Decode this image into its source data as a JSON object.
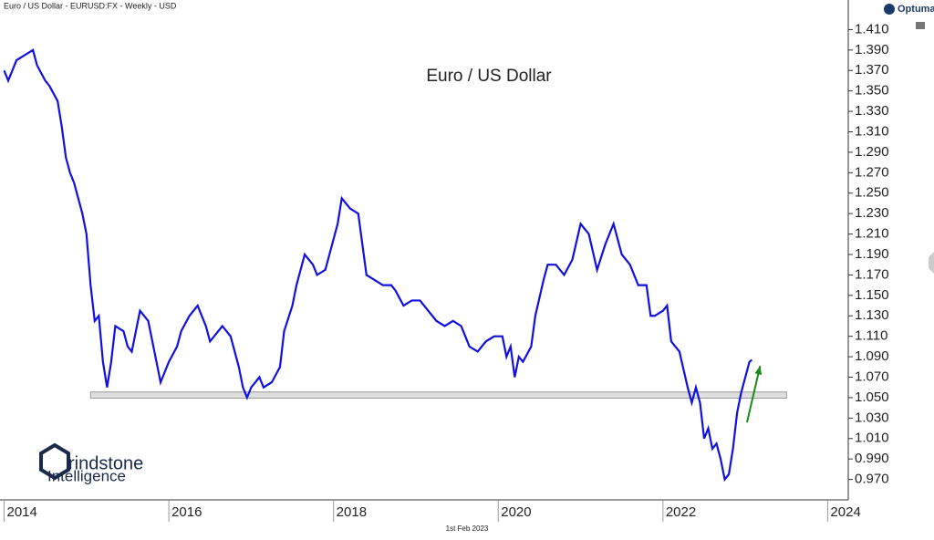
{
  "header": "Euro / US Dollar - EURUSD:FX - Weekly - USD",
  "brand": "Optuma",
  "footer": "1st Feb 2023",
  "logo": {
    "line1": "rindstone",
    "line2": "Intelligence"
  },
  "chart_data": {
    "type": "line",
    "title": "Euro / US Dollar",
    "x": [
      2014.0,
      2014.05,
      2014.1,
      2014.15,
      2014.25,
      2014.35,
      2014.4,
      2014.5,
      2014.55,
      2014.65,
      2014.7,
      2014.75,
      2014.8,
      2014.85,
      2014.9,
      2014.95,
      2015.0,
      2015.05,
      2015.1,
      2015.15,
      2015.2,
      2015.25,
      2015.3,
      2015.35,
      2015.45,
      2015.5,
      2015.55,
      2015.65,
      2015.75,
      2015.85,
      2015.9,
      2016.0,
      2016.1,
      2016.15,
      2016.25,
      2016.35,
      2016.45,
      2016.5,
      2016.55,
      2016.65,
      2016.75,
      2016.85,
      2016.9,
      2016.95,
      2017.0,
      2017.1,
      2017.15,
      2017.25,
      2017.35,
      2017.4,
      2017.5,
      2017.55,
      2017.65,
      2017.75,
      2017.8,
      2017.9,
      2017.95,
      2018.05,
      2018.1,
      2018.2,
      2018.3,
      2018.35,
      2018.4,
      2018.5,
      2018.6,
      2018.7,
      2018.75,
      2018.85,
      2018.95,
      2019.05,
      2019.15,
      2019.25,
      2019.35,
      2019.45,
      2019.55,
      2019.65,
      2019.75,
      2019.85,
      2019.95,
      2020.05,
      2020.1,
      2020.15,
      2020.2,
      2020.25,
      2020.3,
      2020.4,
      2020.45,
      2020.55,
      2020.6,
      2020.7,
      2020.8,
      2020.9,
      2021.0,
      2021.1,
      2021.2,
      2021.3,
      2021.4,
      2021.5,
      2021.6,
      2021.7,
      2021.8,
      2021.85,
      2021.9,
      2022.0,
      2022.05,
      2022.1,
      2022.2,
      2022.3,
      2022.35,
      2022.4,
      2022.45,
      2022.5,
      2022.55,
      2022.6,
      2022.65,
      2022.7,
      2022.75,
      2022.8,
      2022.85,
      2022.9,
      2022.95,
      2023.0,
      2023.05,
      2023.08
    ],
    "series": [
      {
        "name": "EURUSD",
        "color": "#1010e0",
        "values": [
          1.37,
          1.36,
          1.37,
          1.38,
          1.385,
          1.39,
          1.375,
          1.36,
          1.355,
          1.34,
          1.315,
          1.285,
          1.27,
          1.26,
          1.245,
          1.23,
          1.21,
          1.16,
          1.125,
          1.13,
          1.085,
          1.06,
          1.085,
          1.12,
          1.115,
          1.1,
          1.095,
          1.135,
          1.125,
          1.085,
          1.065,
          1.085,
          1.1,
          1.115,
          1.13,
          1.14,
          1.12,
          1.105,
          1.11,
          1.12,
          1.11,
          1.08,
          1.06,
          1.05,
          1.06,
          1.07,
          1.06,
          1.065,
          1.08,
          1.115,
          1.14,
          1.16,
          1.19,
          1.18,
          1.17,
          1.175,
          1.19,
          1.22,
          1.245,
          1.235,
          1.23,
          1.2,
          1.17,
          1.165,
          1.16,
          1.16,
          1.155,
          1.14,
          1.145,
          1.145,
          1.135,
          1.125,
          1.12,
          1.125,
          1.12,
          1.1,
          1.095,
          1.105,
          1.11,
          1.11,
          1.09,
          1.1,
          1.07,
          1.09,
          1.085,
          1.1,
          1.13,
          1.165,
          1.18,
          1.18,
          1.17,
          1.185,
          1.22,
          1.21,
          1.175,
          1.2,
          1.22,
          1.19,
          1.18,
          1.16,
          1.16,
          1.13,
          1.13,
          1.135,
          1.14,
          1.105,
          1.095,
          1.06,
          1.045,
          1.06,
          1.045,
          1.01,
          1.02,
          1.0,
          1.005,
          0.99,
          0.97,
          0.975,
          1.0,
          1.035,
          1.055,
          1.07,
          1.085,
          1.087
        ]
      }
    ],
    "support_band": {
      "x": [
        2015.05,
        2023.5
      ],
      "y": [
        1.0495,
        1.0555
      ],
      "color": "#d4d4d4"
    },
    "arrow": {
      "x": [
        2023.02,
        2023.18
      ],
      "y": [
        1.0257,
        1.081
      ],
      "color": "#1a8a1a"
    },
    "xlim": [
      2013.95,
      2024.25
    ],
    "xticks": [
      2014,
      2016,
      2018,
      2020,
      2022,
      2024
    ],
    "ylim": [
      0.95,
      1.43
    ],
    "yticks": [
      {
        "value": 0.97,
        "label": "0.970"
      },
      {
        "value": 0.99,
        "label": "0.990"
      },
      {
        "value": 1.01,
        "label": "1.010"
      },
      {
        "value": 1.03,
        "label": "1.030"
      },
      {
        "value": 1.05,
        "label": "1.050"
      },
      {
        "value": 1.07,
        "label": "1.070"
      },
      {
        "value": 1.09,
        "label": "1.090"
      },
      {
        "value": 1.11,
        "label": "1.110"
      },
      {
        "value": 1.13,
        "label": "1.130"
      },
      {
        "value": 1.15,
        "label": "1.150"
      },
      {
        "value": 1.17,
        "label": "1.170"
      },
      {
        "value": 1.19,
        "label": "1.190"
      },
      {
        "value": 1.21,
        "label": "1.210"
      },
      {
        "value": 1.23,
        "label": "1.230"
      },
      {
        "value": 1.25,
        "label": "1.250"
      },
      {
        "value": 1.27,
        "label": "1.270"
      },
      {
        "value": 1.29,
        "label": "1.290"
      },
      {
        "value": 1.31,
        "label": "1.310"
      },
      {
        "value": 1.33,
        "label": "1.330"
      },
      {
        "value": 1.35,
        "label": "1.350"
      },
      {
        "value": 1.37,
        "label": "1.370"
      },
      {
        "value": 1.39,
        "label": "1.390"
      },
      {
        "value": 1.41,
        "label": "1.410"
      }
    ]
  }
}
